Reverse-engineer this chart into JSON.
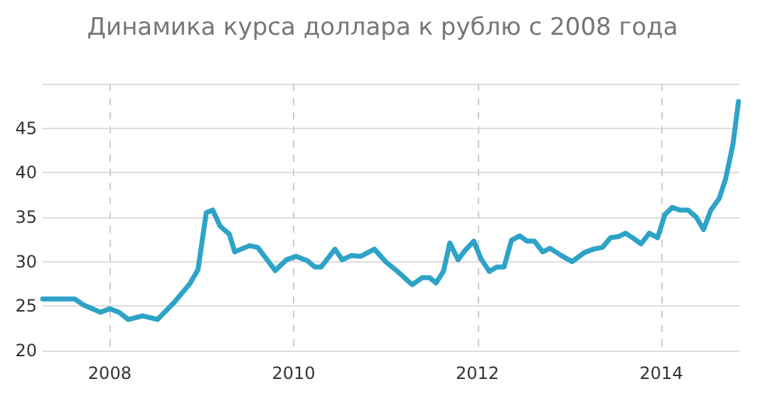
{
  "chart_data": {
    "type": "line",
    "title": "Динамика курса доллара к рублю с 2008 года",
    "x": [
      2007.27,
      2007.62,
      2007.72,
      2007.9,
      2008.0,
      2008.1,
      2008.2,
      2008.36,
      2008.52,
      2008.7,
      2008.87,
      2008.96,
      2009.05,
      2009.12,
      2009.2,
      2009.3,
      2009.36,
      2009.52,
      2009.61,
      2009.8,
      2009.92,
      2010.03,
      2010.15,
      2010.23,
      2010.3,
      2010.45,
      2010.53,
      2010.63,
      2010.73,
      2010.88,
      2011.0,
      2011.13,
      2011.29,
      2011.4,
      2011.48,
      2011.55,
      2011.63,
      2011.7,
      2011.79,
      2011.86,
      2011.96,
      2012.04,
      2012.13,
      2012.21,
      2012.29,
      2012.37,
      2012.46,
      2012.54,
      2012.62,
      2012.71,
      2012.79,
      2012.91,
      2013.03,
      2013.16,
      2013.26,
      2013.36,
      2013.45,
      2013.53,
      2013.61,
      2013.7,
      2013.78,
      2013.87,
      2013.96,
      2014.04,
      2014.12,
      2014.2,
      2014.29,
      2014.38,
      2014.46,
      2014.54,
      2014.63,
      2014.7,
      2014.78,
      2014.84
    ],
    "series": [
      {
        "color": "#2ea3c8",
        "values": [
          25.8,
          25.8,
          25.1,
          24.3,
          24.7,
          24.3,
          23.5,
          23.9,
          23.5,
          25.4,
          27.5,
          29.1,
          35.5,
          35.8,
          34.0,
          33.1,
          31.1,
          31.8,
          31.6,
          29.0,
          30.2,
          30.6,
          30.1,
          29.4,
          29.4,
          31.4,
          30.2,
          30.7,
          30.6,
          31.4,
          30.0,
          28.9,
          27.4,
          28.2,
          28.2,
          27.6,
          28.9,
          32.1,
          30.2,
          31.2,
          32.3,
          30.3,
          28.9,
          29.4,
          29.4,
          32.4,
          32.9,
          32.3,
          32.3,
          31.1,
          31.5,
          30.7,
          30.0,
          31.0,
          31.4,
          31.6,
          32.7,
          32.8,
          33.2,
          32.6,
          32.0,
          33.2,
          32.7,
          35.3,
          36.1,
          35.8,
          35.8,
          35.0,
          33.6,
          35.8,
          37.1,
          39.3,
          43.2,
          48.0
        ]
      }
    ],
    "xlim": [
      2007.27,
      2014.85
    ],
    "xticks": [
      2008,
      2010,
      2012,
      2014
    ],
    "ylim": [
      20,
      50
    ],
    "yticks": [
      20,
      25,
      30,
      35,
      40,
      45,
      {
        "value": 50,
        "label": null
      }
    ],
    "grid": true,
    "marker": "none",
    "line_style": "solid"
  }
}
